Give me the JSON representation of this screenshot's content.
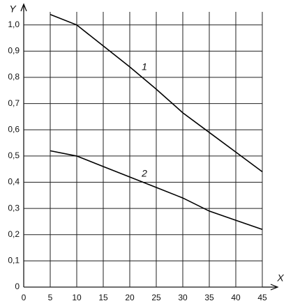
{
  "chart_data": {
    "type": "line",
    "xlabel": "X",
    "ylabel": "Y",
    "x": [
      5,
      10,
      15,
      20,
      25,
      30,
      35,
      40,
      45
    ],
    "series": [
      {
        "name": "1",
        "color": "#000000",
        "values": [
          1.04,
          1.0,
          0.92,
          0.84,
          0.755,
          0.665,
          0.59,
          0.515,
          0.44
        ]
      },
      {
        "name": "2",
        "color": "#000000",
        "values": [
          0.52,
          0.5,
          0.46,
          0.42,
          0.38,
          0.34,
          0.29,
          0.255,
          0.22
        ]
      }
    ],
    "xlim": [
      0,
      45
    ],
    "ylim": [
      0,
      1.05
    ],
    "xticks": [
      0,
      5,
      10,
      15,
      20,
      25,
      30,
      35,
      40,
      45
    ],
    "yticks": [
      0,
      {
        "value": 0.1,
        "label": "0,1"
      },
      {
        "value": 0.2,
        "label": "0,2"
      },
      {
        "value": 0.3,
        "label": "0,3"
      },
      {
        "value": 0.4,
        "label": "0,4"
      },
      {
        "value": 0.5,
        "label": "0,5"
      },
      {
        "value": 0.6,
        "label": "0,6"
      },
      {
        "value": 0.7,
        "label": "0,7"
      },
      {
        "value": 0.8,
        "label": "0,8"
      },
      {
        "value": 0.9,
        "label": "0,9"
      },
      {
        "value": 1.0,
        "label": "1,0"
      }
    ],
    "grid": true
  }
}
